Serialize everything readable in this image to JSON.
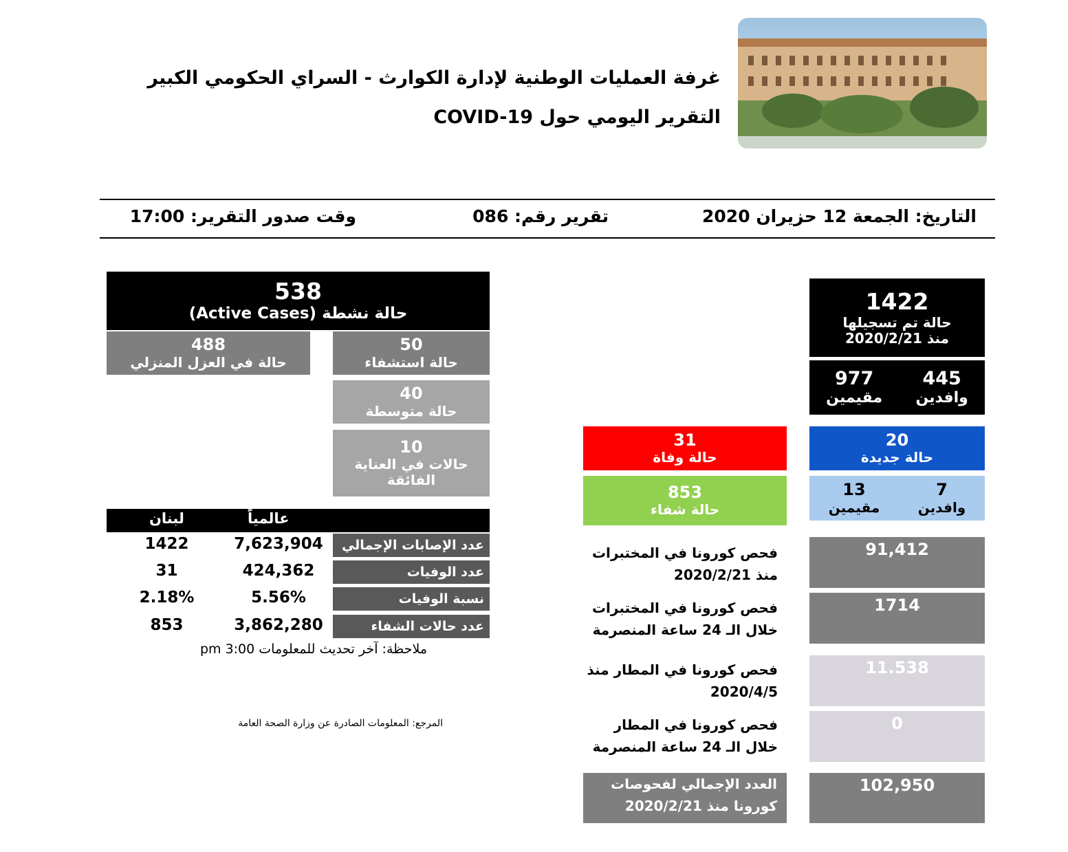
{
  "header": {
    "title_line1": "غرفة العمليات الوطنية لإدارة الكوارث - السراي الحكومي الكبير",
    "title_line2": "التقرير اليومي حول COVID-19"
  },
  "meta": {
    "date": "التاريخ: الجمعة 12 حزيران 2020",
    "report_number": "تقرير رقم: 086",
    "report_time": "وقت صدور التقرير: 17:00"
  },
  "totals": {
    "registered_value": "1422",
    "registered_label": "حالة تم تسجيلها",
    "registered_since": "منذ 2020/2/21",
    "residents_value": "977",
    "residents_label": "مقيمين",
    "arrivals_value": "445",
    "arrivals_label": "وافدين"
  },
  "new_cases": {
    "value": "20",
    "label": "حالة جديدة",
    "residents_value": "13",
    "residents_label": "مقيمين",
    "arrivals_value": "7",
    "arrivals_label": "وافدين"
  },
  "deaths": {
    "value": "31",
    "label": "حالة وفاة"
  },
  "recovered": {
    "value": "853",
    "label": "حالة شفاء"
  },
  "active": {
    "value": "538",
    "label": "حالة نشطة (Active Cases)",
    "home_isolation_value": "488",
    "home_isolation_label": "حالة في العزل المنزلي",
    "hospitalized_value": "50",
    "hospitalized_label": "حالة استشفاء",
    "moderate_value": "40",
    "moderate_label": "حالة متوسطة",
    "icu_value": "10",
    "icu_label_line1": "حالات في العناية",
    "icu_label_line2": "الفائقة"
  },
  "tests": {
    "lab_since_label_line1": "فحص كورونا في المختبرات",
    "lab_since_label_line2": "منذ 2020/2/21",
    "lab_since_value": "91,412",
    "lab_24h_label_line1": "فحص كورونا في المختبرات",
    "lab_24h_label_line2": "خلال الـ 24 ساعة المنصرمة",
    "lab_24h_value": "1714",
    "airport_since_label_line1": "فحص كورونا في المطار منذ",
    "airport_since_label_line2": "2020/4/5",
    "airport_since_value": "11.538",
    "airport_24h_label_line1": "فحص كورونا في المطار",
    "airport_24h_label_line2": "خلال الـ 24 ساعة المنصرمة",
    "airport_24h_value": "0",
    "total_label_line1": "العدد الإجمالي لفحوصات",
    "total_label_line2": "كورونا منذ 2020/2/21",
    "total_value": "102,950"
  },
  "comparison": {
    "col_global": "عالمياً",
    "col_lebanon": "لبنان",
    "rows": [
      {
        "label": "عدد الإصابات الإجمالي",
        "global": "7,623,904",
        "lebanon": "1422"
      },
      {
        "label": "عدد الوفيات",
        "global": "424,362",
        "lebanon": "31"
      },
      {
        "label": "نسبة الوفيات",
        "global": "5.56%",
        "lebanon": "2.18%"
      },
      {
        "label": "عدد حالات الشفاء",
        "global": "3,862,280",
        "lebanon": "853"
      }
    ],
    "note": "ملاحظة: آخر تحديث للمعلومات 3:00 pm"
  },
  "footer": {
    "source": "المرجع: المعلومات الصادرة عن وزارة الصحة العامة"
  },
  "colors": {
    "new_cases": "#0f56c9",
    "deaths": "#ff0000",
    "recovered": "#92d050",
    "arrivals_breakdown": "#a9cbee"
  }
}
